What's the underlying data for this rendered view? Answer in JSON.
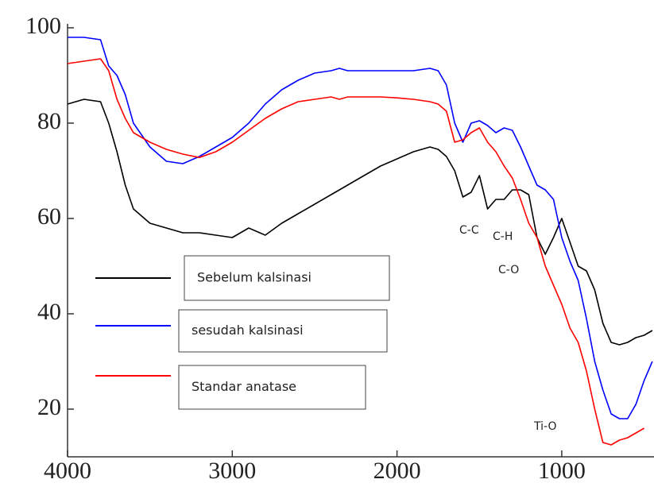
{
  "chart_data": {
    "type": "line",
    "x": [
      4000,
      3900,
      3800,
      3750,
      3700,
      3650,
      3600,
      3500,
      3400,
      3300,
      3200,
      3100,
      3000,
      2900,
      2800,
      2700,
      2600,
      2500,
      2400,
      2350,
      2300,
      2200,
      2100,
      2000,
      1900,
      1800,
      1750,
      1700,
      1650,
      1600,
      1550,
      1500,
      1450,
      1400,
      1350,
      1300,
      1250,
      1200,
      1150,
      1100,
      1050,
      1000,
      950,
      900,
      850,
      800,
      750,
      700,
      650,
      600,
      550,
      500,
      450
    ],
    "series": [
      {
        "name": "Sebelum kalsinasi",
        "color": "#000000",
        "values": [
          84,
          85,
          84.5,
          80,
          74,
          67,
          62,
          59,
          58,
          57,
          57,
          56.5,
          56,
          58,
          56.5,
          59,
          61,
          63,
          65,
          66,
          67,
          69,
          71,
          72.5,
          74,
          75,
          74.5,
          73,
          70,
          64.5,
          65.5,
          69,
          62,
          64,
          64,
          66,
          66,
          65,
          56,
          52.5,
          56,
          60,
          55,
          50,
          49,
          45,
          38,
          34,
          33.5,
          34,
          35,
          35.5,
          36.5
        ]
      },
      {
        "name": "sesudah kalsinasi",
        "color": "#0000ff",
        "values": [
          98,
          98,
          97.5,
          92,
          90,
          86,
          80,
          75,
          72,
          71.5,
          73,
          75,
          77,
          80,
          84,
          87,
          89,
          90.5,
          91,
          91.5,
          91,
          91,
          91,
          91,
          91,
          91.5,
          91,
          88,
          80,
          76,
          80,
          80.5,
          79.5,
          78,
          79,
          78.5,
          75,
          71,
          67,
          66,
          64,
          56,
          51,
          47,
          39,
          30,
          24,
          19,
          18,
          18,
          21,
          26,
          30
        ]
      },
      {
        "name": "Standar anatase",
        "color": "#ff0000",
        "values": [
          92.5,
          93,
          93.5,
          91,
          85,
          81,
          78,
          76,
          74.5,
          73.5,
          72.8,
          74,
          76,
          78.5,
          81,
          83,
          84.5,
          85,
          85.5,
          85,
          85.5,
          85.5,
          85.5,
          85.3,
          85,
          84.5,
          84,
          82.5,
          76,
          76.5,
          78,
          79,
          76,
          74,
          71,
          68.5,
          64,
          59,
          56,
          50,
          46,
          42,
          37,
          34,
          28,
          20,
          13,
          12.5,
          13.5,
          14,
          15,
          16,
          null
        ]
      }
    ],
    "annotations": [
      "C-C",
      "C-H",
      "C-O",
      "Ti-O"
    ],
    "xlim": [
      4000,
      440
    ],
    "xticks": [
      4000,
      3000,
      2000,
      1000
    ],
    "ylim": [
      10,
      100
    ],
    "yticks": [
      20,
      40,
      60,
      80,
      100
    ]
  }
}
